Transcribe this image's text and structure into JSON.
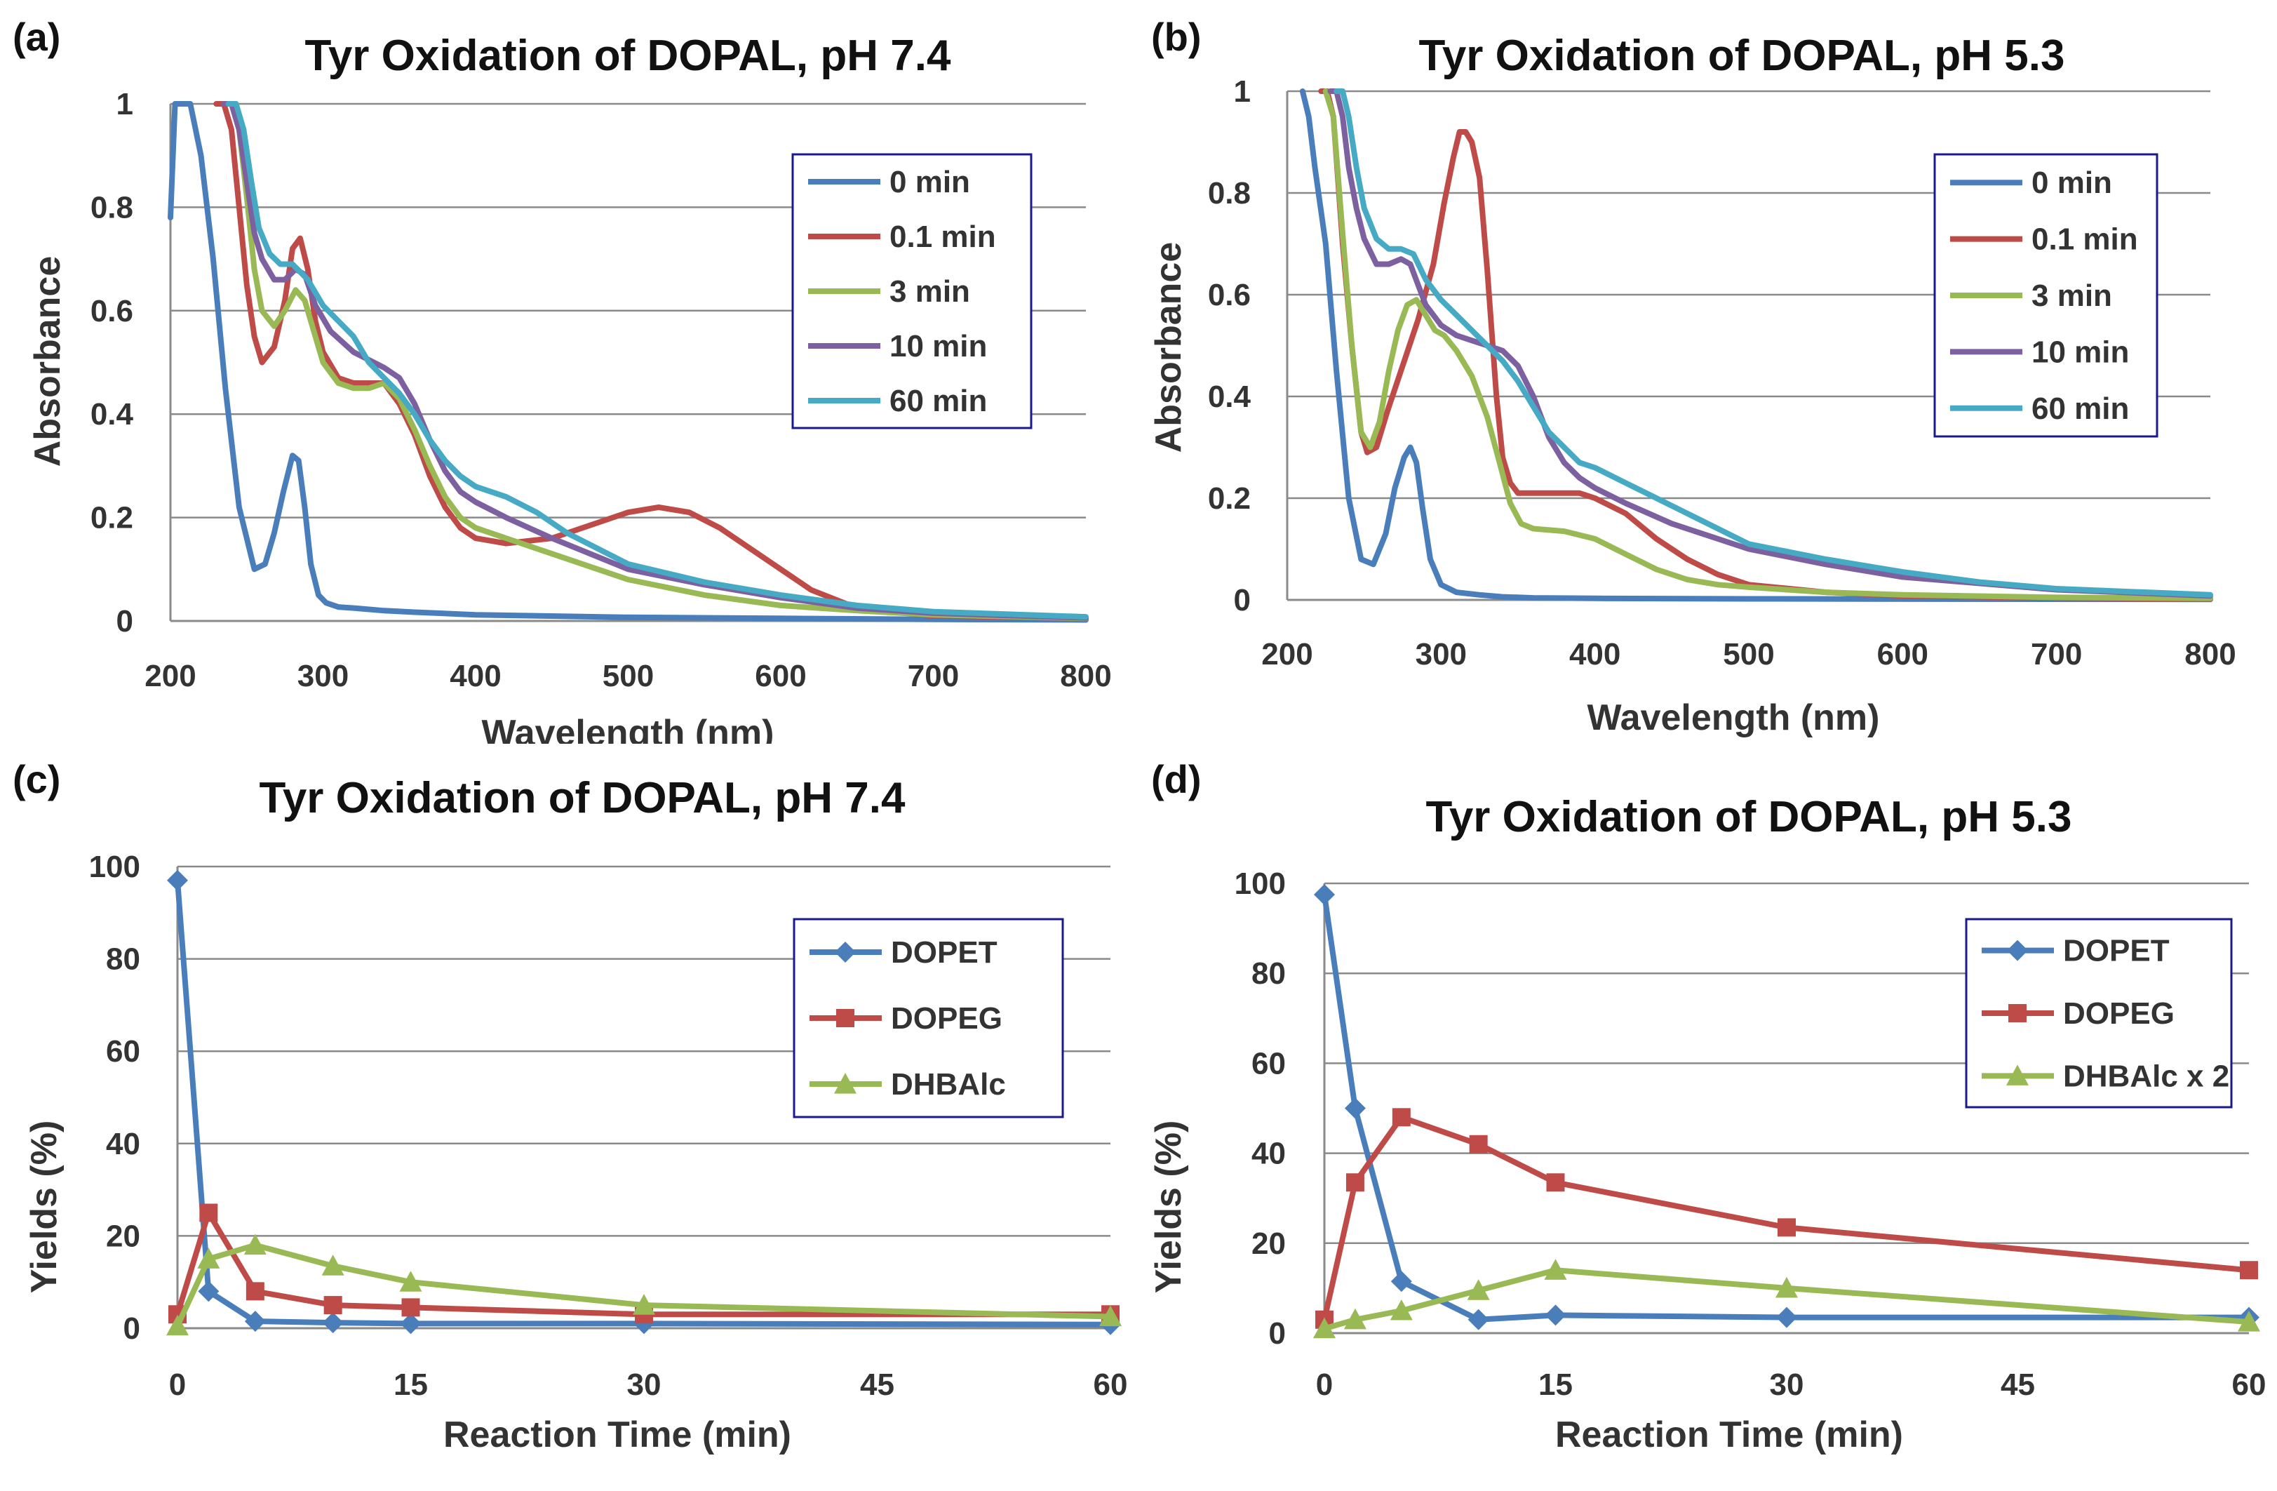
{
  "panel_letters": [
    "(a)",
    "(b)",
    "(c)",
    "(d)"
  ],
  "chart_data": [
    {
      "id": "a",
      "type": "line",
      "title": "Tyr Oxidation of DOPAL, pH 7.4",
      "xlabel": "Wavelength (nm)",
      "ylabel": "Absorbance",
      "xlim": [
        200,
        800
      ],
      "ylim": [
        0,
        1
      ],
      "xticks": [
        200,
        300,
        400,
        500,
        600,
        700,
        800
      ],
      "yticks": [
        0,
        0.2,
        0.4,
        0.6,
        0.8,
        1
      ],
      "ytick_labels": [
        "0",
        "0.2",
        "0.4",
        "0.6",
        "0.8",
        "1"
      ],
      "grid": true,
      "legend_position": "top-right",
      "series": [
        {
          "name": "0 min",
          "color": "#4a7ebb",
          "x": [
            200,
            203,
            206,
            210,
            213,
            220,
            228,
            236,
            245,
            255,
            262,
            268,
            274,
            280,
            284,
            288,
            292,
            297,
            302,
            310,
            320,
            340,
            360,
            400,
            500,
            600,
            700,
            800
          ],
          "y": [
            0.78,
            1,
            1,
            1,
            1,
            0.9,
            0.7,
            0.45,
            0.22,
            0.1,
            0.11,
            0.17,
            0.25,
            0.32,
            0.31,
            0.22,
            0.11,
            0.05,
            0.035,
            0.027,
            0.025,
            0.02,
            0.017,
            0.012,
            0.007,
            0.005,
            0.003,
            0.002
          ]
        },
        {
          "name": "0.1 min",
          "color": "#be4b48",
          "x": [
            230,
            235,
            240,
            245,
            250,
            255,
            260,
            268,
            275,
            280,
            285,
            290,
            295,
            300,
            310,
            320,
            330,
            340,
            350,
            360,
            370,
            380,
            390,
            400,
            420,
            450,
            480,
            500,
            520,
            540,
            560,
            580,
            600,
            620,
            650,
            700,
            800
          ],
          "y": [
            1,
            1,
            0.95,
            0.8,
            0.65,
            0.55,
            0.5,
            0.53,
            0.62,
            0.72,
            0.74,
            0.68,
            0.58,
            0.52,
            0.47,
            0.46,
            0.46,
            0.46,
            0.42,
            0.36,
            0.28,
            0.22,
            0.18,
            0.16,
            0.15,
            0.16,
            0.19,
            0.21,
            0.22,
            0.21,
            0.18,
            0.14,
            0.1,
            0.06,
            0.025,
            0.01,
            0.005
          ]
        },
        {
          "name": "3 min",
          "color": "#98b954",
          "x": [
            235,
            240,
            245,
            250,
            255,
            260,
            268,
            275,
            282,
            288,
            295,
            300,
            310,
            320,
            330,
            340,
            350,
            360,
            370,
            380,
            390,
            400,
            420,
            450,
            500,
            550,
            600,
            650,
            700,
            800
          ],
          "y": [
            1,
            1,
            0.95,
            0.82,
            0.68,
            0.6,
            0.57,
            0.6,
            0.64,
            0.62,
            0.55,
            0.5,
            0.46,
            0.45,
            0.45,
            0.46,
            0.43,
            0.37,
            0.3,
            0.24,
            0.2,
            0.18,
            0.16,
            0.13,
            0.08,
            0.05,
            0.03,
            0.02,
            0.012,
            0.005
          ]
        },
        {
          "name": "10 min",
          "color": "#7d60a0",
          "x": [
            235,
            240,
            245,
            250,
            255,
            260,
            268,
            275,
            282,
            288,
            295,
            305,
            320,
            340,
            350,
            360,
            370,
            380,
            390,
            400,
            420,
            450,
            500,
            550,
            600,
            650,
            700,
            800
          ],
          "y": [
            1,
            1,
            0.95,
            0.85,
            0.75,
            0.7,
            0.66,
            0.66,
            0.68,
            0.67,
            0.61,
            0.56,
            0.52,
            0.49,
            0.47,
            0.42,
            0.35,
            0.29,
            0.25,
            0.23,
            0.2,
            0.16,
            0.1,
            0.07,
            0.045,
            0.025,
            0.015,
            0.006
          ]
        },
        {
          "name": "60 min",
          "color": "#46aac5",
          "x": [
            238,
            243,
            248,
            253,
            258,
            265,
            272,
            280,
            290,
            300,
            310,
            320,
            330,
            340,
            350,
            360,
            370,
            380,
            390,
            400,
            420,
            440,
            460,
            500,
            550,
            600,
            650,
            700,
            800
          ],
          "y": [
            1,
            1,
            0.95,
            0.85,
            0.76,
            0.71,
            0.69,
            0.69,
            0.66,
            0.61,
            0.58,
            0.55,
            0.5,
            0.47,
            0.44,
            0.4,
            0.35,
            0.31,
            0.28,
            0.26,
            0.24,
            0.21,
            0.17,
            0.11,
            0.075,
            0.05,
            0.03,
            0.018,
            0.008
          ]
        }
      ]
    },
    {
      "id": "b",
      "type": "line",
      "title": "Tyr Oxidation of DOPAL, pH 5.3",
      "xlabel": "Wavelength (nm)",
      "ylabel": "Absorbance",
      "xlim": [
        200,
        800
      ],
      "ylim": [
        0,
        1
      ],
      "xticks": [
        200,
        300,
        400,
        500,
        600,
        700,
        800
      ],
      "yticks": [
        0,
        0.2,
        0.4,
        0.6,
        0.8,
        1
      ],
      "ytick_labels": [
        "0",
        "0.2",
        "0.4",
        "0.6",
        "0.8",
        "1"
      ],
      "grid": true,
      "legend_position": "top-right",
      "series": [
        {
          "name": "0 min",
          "color": "#4a7ebb",
          "x": [
            210,
            214,
            218,
            225,
            232,
            240,
            248,
            256,
            264,
            270,
            276,
            280,
            284,
            288,
            293,
            300,
            310,
            325,
            340,
            360,
            400,
            500,
            800
          ],
          "y": [
            1,
            0.95,
            0.85,
            0.7,
            0.45,
            0.2,
            0.08,
            0.07,
            0.13,
            0.22,
            0.28,
            0.3,
            0.27,
            0.18,
            0.08,
            0.03,
            0.015,
            0.01,
            0.006,
            0.004,
            0.003,
            0.002,
            0.001
          ]
        },
        {
          "name": "0.1 min",
          "color": "#be4b48",
          "x": [
            222,
            226,
            230,
            236,
            242,
            248,
            252,
            258,
            265,
            275,
            285,
            295,
            302,
            308,
            312,
            316,
            320,
            325,
            330,
            336,
            340,
            345,
            350,
            360,
            370,
            380,
            390,
            400,
            420,
            440,
            460,
            480,
            500,
            550,
            600,
            700,
            800
          ],
          "y": [
            1,
            1,
            0.95,
            0.7,
            0.5,
            0.33,
            0.29,
            0.3,
            0.37,
            0.46,
            0.55,
            0.66,
            0.78,
            0.87,
            0.92,
            0.92,
            0.9,
            0.83,
            0.65,
            0.4,
            0.28,
            0.23,
            0.21,
            0.21,
            0.21,
            0.21,
            0.21,
            0.2,
            0.17,
            0.12,
            0.08,
            0.05,
            0.03,
            0.015,
            0.008,
            0.004,
            0.002
          ]
        },
        {
          "name": "3 min",
          "color": "#98b954",
          "x": [
            225,
            230,
            236,
            242,
            248,
            254,
            260,
            266,
            272,
            278,
            284,
            290,
            296,
            302,
            310,
            320,
            330,
            338,
            345,
            352,
            360,
            380,
            400,
            420,
            440,
            460,
            480,
            500,
            550,
            600,
            700,
            800
          ],
          "y": [
            1,
            0.95,
            0.72,
            0.5,
            0.33,
            0.3,
            0.35,
            0.45,
            0.53,
            0.58,
            0.59,
            0.56,
            0.53,
            0.52,
            0.49,
            0.44,
            0.36,
            0.27,
            0.19,
            0.15,
            0.14,
            0.135,
            0.12,
            0.09,
            0.06,
            0.04,
            0.03,
            0.025,
            0.015,
            0.01,
            0.005,
            0.003
          ]
        },
        {
          "name": "10 min",
          "color": "#7d60a0",
          "x": [
            228,
            232,
            236,
            240,
            245,
            250,
            258,
            266,
            274,
            280,
            285,
            290,
            300,
            310,
            320,
            330,
            340,
            350,
            360,
            370,
            380,
            390,
            400,
            420,
            450,
            500,
            550,
            600,
            700,
            800
          ],
          "y": [
            1,
            1,
            0.95,
            0.85,
            0.77,
            0.71,
            0.66,
            0.66,
            0.67,
            0.66,
            0.62,
            0.58,
            0.54,
            0.52,
            0.51,
            0.5,
            0.49,
            0.46,
            0.4,
            0.32,
            0.27,
            0.24,
            0.22,
            0.19,
            0.15,
            0.1,
            0.07,
            0.045,
            0.02,
            0.008
          ]
        },
        {
          "name": "60 min",
          "color": "#46aac5",
          "x": [
            232,
            236,
            240,
            245,
            250,
            258,
            266,
            274,
            282,
            290,
            300,
            310,
            320,
            330,
            340,
            350,
            360,
            370,
            380,
            390,
            400,
            420,
            440,
            460,
            500,
            550,
            600,
            650,
            700,
            800
          ],
          "y": [
            1,
            1,
            0.95,
            0.85,
            0.77,
            0.71,
            0.69,
            0.69,
            0.68,
            0.63,
            0.59,
            0.56,
            0.53,
            0.5,
            0.47,
            0.43,
            0.38,
            0.33,
            0.3,
            0.27,
            0.26,
            0.23,
            0.2,
            0.17,
            0.11,
            0.08,
            0.055,
            0.035,
            0.022,
            0.01
          ]
        }
      ]
    },
    {
      "id": "c",
      "type": "line",
      "title": "Tyr Oxidation of DOPAL, pH 7.4",
      "xlabel": "Reaction Time (min)",
      "ylabel": "Yields (%)",
      "xlim": [
        0,
        60
      ],
      "ylim": [
        0,
        100
      ],
      "xticks": [
        0,
        15,
        30,
        45,
        60
      ],
      "yticks": [
        0,
        20,
        40,
        60,
        80,
        100
      ],
      "ytick_labels": [
        "0",
        "20",
        "40",
        "60",
        "80",
        "100"
      ],
      "grid": true,
      "legend_position": "top-right",
      "series": [
        {
          "name": "DOPET",
          "color": "#4a7ebb",
          "marker": "diamond",
          "x": [
            0,
            2,
            5,
            10,
            15,
            30,
            60
          ],
          "y": [
            97,
            8,
            1.5,
            1.2,
            1,
            1,
            0.8
          ]
        },
        {
          "name": "DOPEG",
          "color": "#be4b48",
          "marker": "square",
          "x": [
            0,
            2,
            5,
            10,
            15,
            30,
            60
          ],
          "y": [
            3,
            25,
            8,
            5,
            4.5,
            3,
            3
          ]
        },
        {
          "name": "DHBAlc",
          "color": "#98b954",
          "marker": "triangle",
          "x": [
            0,
            2,
            5,
            10,
            15,
            30,
            60
          ],
          "y": [
            0.5,
            15,
            18,
            13.5,
            10,
            5,
            2.5
          ]
        }
      ]
    },
    {
      "id": "d",
      "type": "line",
      "title": "Tyr Oxidation of DOPAL, pH 5.3",
      "xlabel": "Reaction Time (min)",
      "ylabel": "Yields (%)",
      "xlim": [
        0,
        60
      ],
      "ylim": [
        0,
        100
      ],
      "xticks": [
        0,
        15,
        30,
        45,
        60
      ],
      "yticks": [
        0,
        20,
        40,
        60,
        80,
        100
      ],
      "ytick_labels": [
        "0",
        "20",
        "40",
        "60",
        "80",
        "100"
      ],
      "grid": true,
      "legend_position": "top-right",
      "series": [
        {
          "name": "DOPET",
          "color": "#4a7ebb",
          "marker": "diamond",
          "x": [
            0,
            2,
            5,
            10,
            15,
            30,
            60
          ],
          "y": [
            97.5,
            50,
            11.5,
            3,
            4,
            3.5,
            3.5
          ]
        },
        {
          "name": "DOPEG",
          "color": "#be4b48",
          "marker": "square",
          "x": [
            0,
            2,
            5,
            10,
            15,
            30,
            60
          ],
          "y": [
            3,
            33.5,
            48,
            42,
            33.5,
            23.5,
            14
          ]
        },
        {
          "name": "DHBAlc x 2",
          "color": "#98b954",
          "marker": "triangle",
          "x": [
            0,
            2,
            5,
            10,
            15,
            30,
            60
          ],
          "y": [
            1,
            3,
            5,
            9.5,
            14,
            10,
            2.5
          ]
        }
      ]
    }
  ]
}
